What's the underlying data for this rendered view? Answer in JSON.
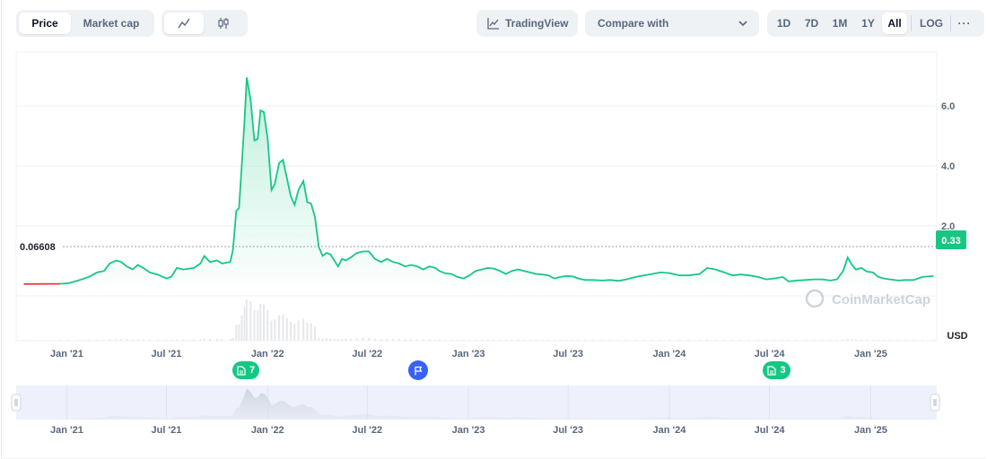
{
  "toolbar": {
    "price_label": "Price",
    "market_cap_label": "Market cap",
    "tradingview_label": "TradingView",
    "compare_label": "Compare with",
    "ranges": [
      "1D",
      "7D",
      "1M",
      "1Y",
      "All"
    ],
    "active_range": "All",
    "log_label": "LOG",
    "more_label": "···"
  },
  "colors": {
    "line": "#16c784",
    "down_line": "#ea3943",
    "accent": "#16c784",
    "event_blue": "#3861fb"
  },
  "watermark": "CoinMarketCap",
  "markers": [
    {
      "icon": "document-icon",
      "count": "7"
    },
    {
      "icon": "flag-icon",
      "count": ""
    },
    {
      "icon": "document-icon",
      "count": "3"
    }
  ],
  "chart_data": {
    "type": "area",
    "y_unit": "USD",
    "y_ticks": [
      2.0,
      4.0,
      6.0
    ],
    "y_tick_labels": [
      "2.0",
      "4.0",
      "6.0"
    ],
    "ylim": [
      -0.33,
      7.8
    ],
    "xlim": [
      "2020-10-01",
      "2025-05-01"
    ],
    "x_tick_labels": [
      "Jan '21",
      "Jul '21",
      "Jan '22",
      "Jul '22",
      "Jan '23",
      "Jul '23",
      "Jan '24",
      "Jul '24",
      "Jan '25"
    ],
    "x_tick_dates": [
      "2021-01-01",
      "2021-07-01",
      "2022-01-01",
      "2022-07-01",
      "2023-01-01",
      "2023-07-01",
      "2024-01-01",
      "2024-07-01",
      "2025-01-01"
    ],
    "start_price_label": "0.06608",
    "start_price": 0.06608,
    "current_price_label": "0.33",
    "current_price": 0.33,
    "series": [
      {
        "values": [
          [
            "2020-10-15",
            0.066
          ],
          [
            "2020-12-20",
            0.07
          ],
          [
            "2021-01-05",
            0.09
          ],
          [
            "2021-01-25",
            0.2
          ],
          [
            "2021-02-10",
            0.3
          ],
          [
            "2021-02-25",
            0.45
          ],
          [
            "2021-03-10",
            0.5
          ],
          [
            "2021-03-20",
            0.75
          ],
          [
            "2021-04-01",
            0.85
          ],
          [
            "2021-04-10",
            0.8
          ],
          [
            "2021-04-20",
            0.65
          ],
          [
            "2021-05-01",
            0.55
          ],
          [
            "2021-05-10",
            0.7
          ],
          [
            "2021-05-20",
            0.6
          ],
          [
            "2021-06-01",
            0.45
          ],
          [
            "2021-06-15",
            0.38
          ],
          [
            "2021-07-01",
            0.25
          ],
          [
            "2021-07-10",
            0.3
          ],
          [
            "2021-07-20",
            0.6
          ],
          [
            "2021-08-01",
            0.55
          ],
          [
            "2021-08-20",
            0.6
          ],
          [
            "2021-09-01",
            0.75
          ],
          [
            "2021-09-08",
            1.0
          ],
          [
            "2021-09-18",
            0.8
          ],
          [
            "2021-10-01",
            0.85
          ],
          [
            "2021-10-10",
            0.75
          ],
          [
            "2021-10-25",
            0.8
          ],
          [
            "2021-10-30",
            1.2
          ],
          [
            "2021-11-05",
            2.5
          ],
          [
            "2021-11-10",
            2.6
          ],
          [
            "2021-11-15",
            4.0
          ],
          [
            "2021-11-20",
            5.5
          ],
          [
            "2021-11-24",
            6.95
          ],
          [
            "2021-12-01",
            6.2
          ],
          [
            "2021-12-08",
            4.85
          ],
          [
            "2021-12-14",
            4.9
          ],
          [
            "2021-12-19",
            5.85
          ],
          [
            "2021-12-25",
            5.8
          ],
          [
            "2022-01-01",
            4.9
          ],
          [
            "2022-01-08",
            3.2
          ],
          [
            "2022-01-14",
            3.4
          ],
          [
            "2022-01-22",
            4.1
          ],
          [
            "2022-01-29",
            4.2
          ],
          [
            "2022-02-05",
            3.6
          ],
          [
            "2022-02-12",
            3.0
          ],
          [
            "2022-02-19",
            2.7
          ],
          [
            "2022-02-26",
            3.2
          ],
          [
            "2022-03-07",
            3.5
          ],
          [
            "2022-03-14",
            2.8
          ],
          [
            "2022-03-21",
            2.75
          ],
          [
            "2022-03-28",
            2.3
          ],
          [
            "2022-04-04",
            1.3
          ],
          [
            "2022-04-11",
            1.0
          ],
          [
            "2022-04-18",
            1.1
          ],
          [
            "2022-04-25",
            1.05
          ],
          [
            "2022-05-02",
            0.85
          ],
          [
            "2022-05-09",
            0.65
          ],
          [
            "2022-05-16",
            0.9
          ],
          [
            "2022-05-23",
            0.85
          ],
          [
            "2022-06-01",
            0.95
          ],
          [
            "2022-06-12",
            1.1
          ],
          [
            "2022-06-23",
            1.15
          ],
          [
            "2022-07-04",
            1.15
          ],
          [
            "2022-07-15",
            0.9
          ],
          [
            "2022-07-26",
            0.8
          ],
          [
            "2022-08-06",
            0.9
          ],
          [
            "2022-08-17",
            0.8
          ],
          [
            "2022-08-28",
            0.75
          ],
          [
            "2022-09-08",
            0.65
          ],
          [
            "2022-09-19",
            0.7
          ],
          [
            "2022-09-30",
            0.65
          ],
          [
            "2022-10-11",
            0.55
          ],
          [
            "2022-10-22",
            0.65
          ],
          [
            "2022-11-02",
            0.6
          ],
          [
            "2022-11-09",
            0.5
          ],
          [
            "2022-11-20",
            0.42
          ],
          [
            "2022-12-01",
            0.4
          ],
          [
            "2022-12-12",
            0.3
          ],
          [
            "2022-12-23",
            0.25
          ],
          [
            "2023-01-03",
            0.35
          ],
          [
            "2023-01-14",
            0.5
          ],
          [
            "2023-01-25",
            0.55
          ],
          [
            "2023-02-05",
            0.6
          ],
          [
            "2023-02-16",
            0.58
          ],
          [
            "2023-02-27",
            0.5
          ],
          [
            "2023-03-10",
            0.4
          ],
          [
            "2023-03-21",
            0.5
          ],
          [
            "2023-04-01",
            0.55
          ],
          [
            "2023-04-12",
            0.5
          ],
          [
            "2023-04-23",
            0.45
          ],
          [
            "2023-05-04",
            0.4
          ],
          [
            "2023-05-15",
            0.38
          ],
          [
            "2023-05-26",
            0.35
          ],
          [
            "2023-06-06",
            0.25
          ],
          [
            "2023-06-17",
            0.3
          ],
          [
            "2023-06-28",
            0.33
          ],
          [
            "2023-07-09",
            0.32
          ],
          [
            "2023-07-20",
            0.25
          ],
          [
            "2023-08-01",
            0.2
          ],
          [
            "2023-08-15",
            0.2
          ],
          [
            "2023-09-01",
            0.18
          ],
          [
            "2023-09-15",
            0.2
          ],
          [
            "2023-10-01",
            0.17
          ],
          [
            "2023-10-15",
            0.22
          ],
          [
            "2023-11-01",
            0.3
          ],
          [
            "2023-11-15",
            0.35
          ],
          [
            "2023-12-01",
            0.4
          ],
          [
            "2023-12-15",
            0.45
          ],
          [
            "2024-01-01",
            0.43
          ],
          [
            "2024-01-20",
            0.35
          ],
          [
            "2024-02-05",
            0.35
          ],
          [
            "2024-02-25",
            0.4
          ],
          [
            "2024-03-10",
            0.6
          ],
          [
            "2024-03-25",
            0.55
          ],
          [
            "2024-04-10",
            0.45
          ],
          [
            "2024-04-25",
            0.35
          ],
          [
            "2024-05-10",
            0.38
          ],
          [
            "2024-05-25",
            0.35
          ],
          [
            "2024-06-10",
            0.3
          ],
          [
            "2024-06-25",
            0.22
          ],
          [
            "2024-07-10",
            0.25
          ],
          [
            "2024-07-25",
            0.3
          ],
          [
            "2024-08-05",
            0.15
          ],
          [
            "2024-08-20",
            0.18
          ],
          [
            "2024-09-05",
            0.2
          ],
          [
            "2024-09-20",
            0.22
          ],
          [
            "2024-10-05",
            0.22
          ],
          [
            "2024-10-20",
            0.18
          ],
          [
            "2024-11-01",
            0.22
          ],
          [
            "2024-11-12",
            0.5
          ],
          [
            "2024-11-20",
            0.95
          ],
          [
            "2024-11-28",
            0.7
          ],
          [
            "2024-12-05",
            0.55
          ],
          [
            "2024-12-15",
            0.6
          ],
          [
            "2024-12-25",
            0.48
          ],
          [
            "2025-01-05",
            0.45
          ],
          [
            "2025-01-15",
            0.3
          ],
          [
            "2025-01-25",
            0.25
          ],
          [
            "2025-02-05",
            0.22
          ],
          [
            "2025-02-20",
            0.18
          ],
          [
            "2025-03-05",
            0.2
          ],
          [
            "2025-03-20",
            0.2
          ],
          [
            "2025-04-05",
            0.3
          ],
          [
            "2025-04-25",
            0.33
          ]
        ]
      }
    ]
  }
}
